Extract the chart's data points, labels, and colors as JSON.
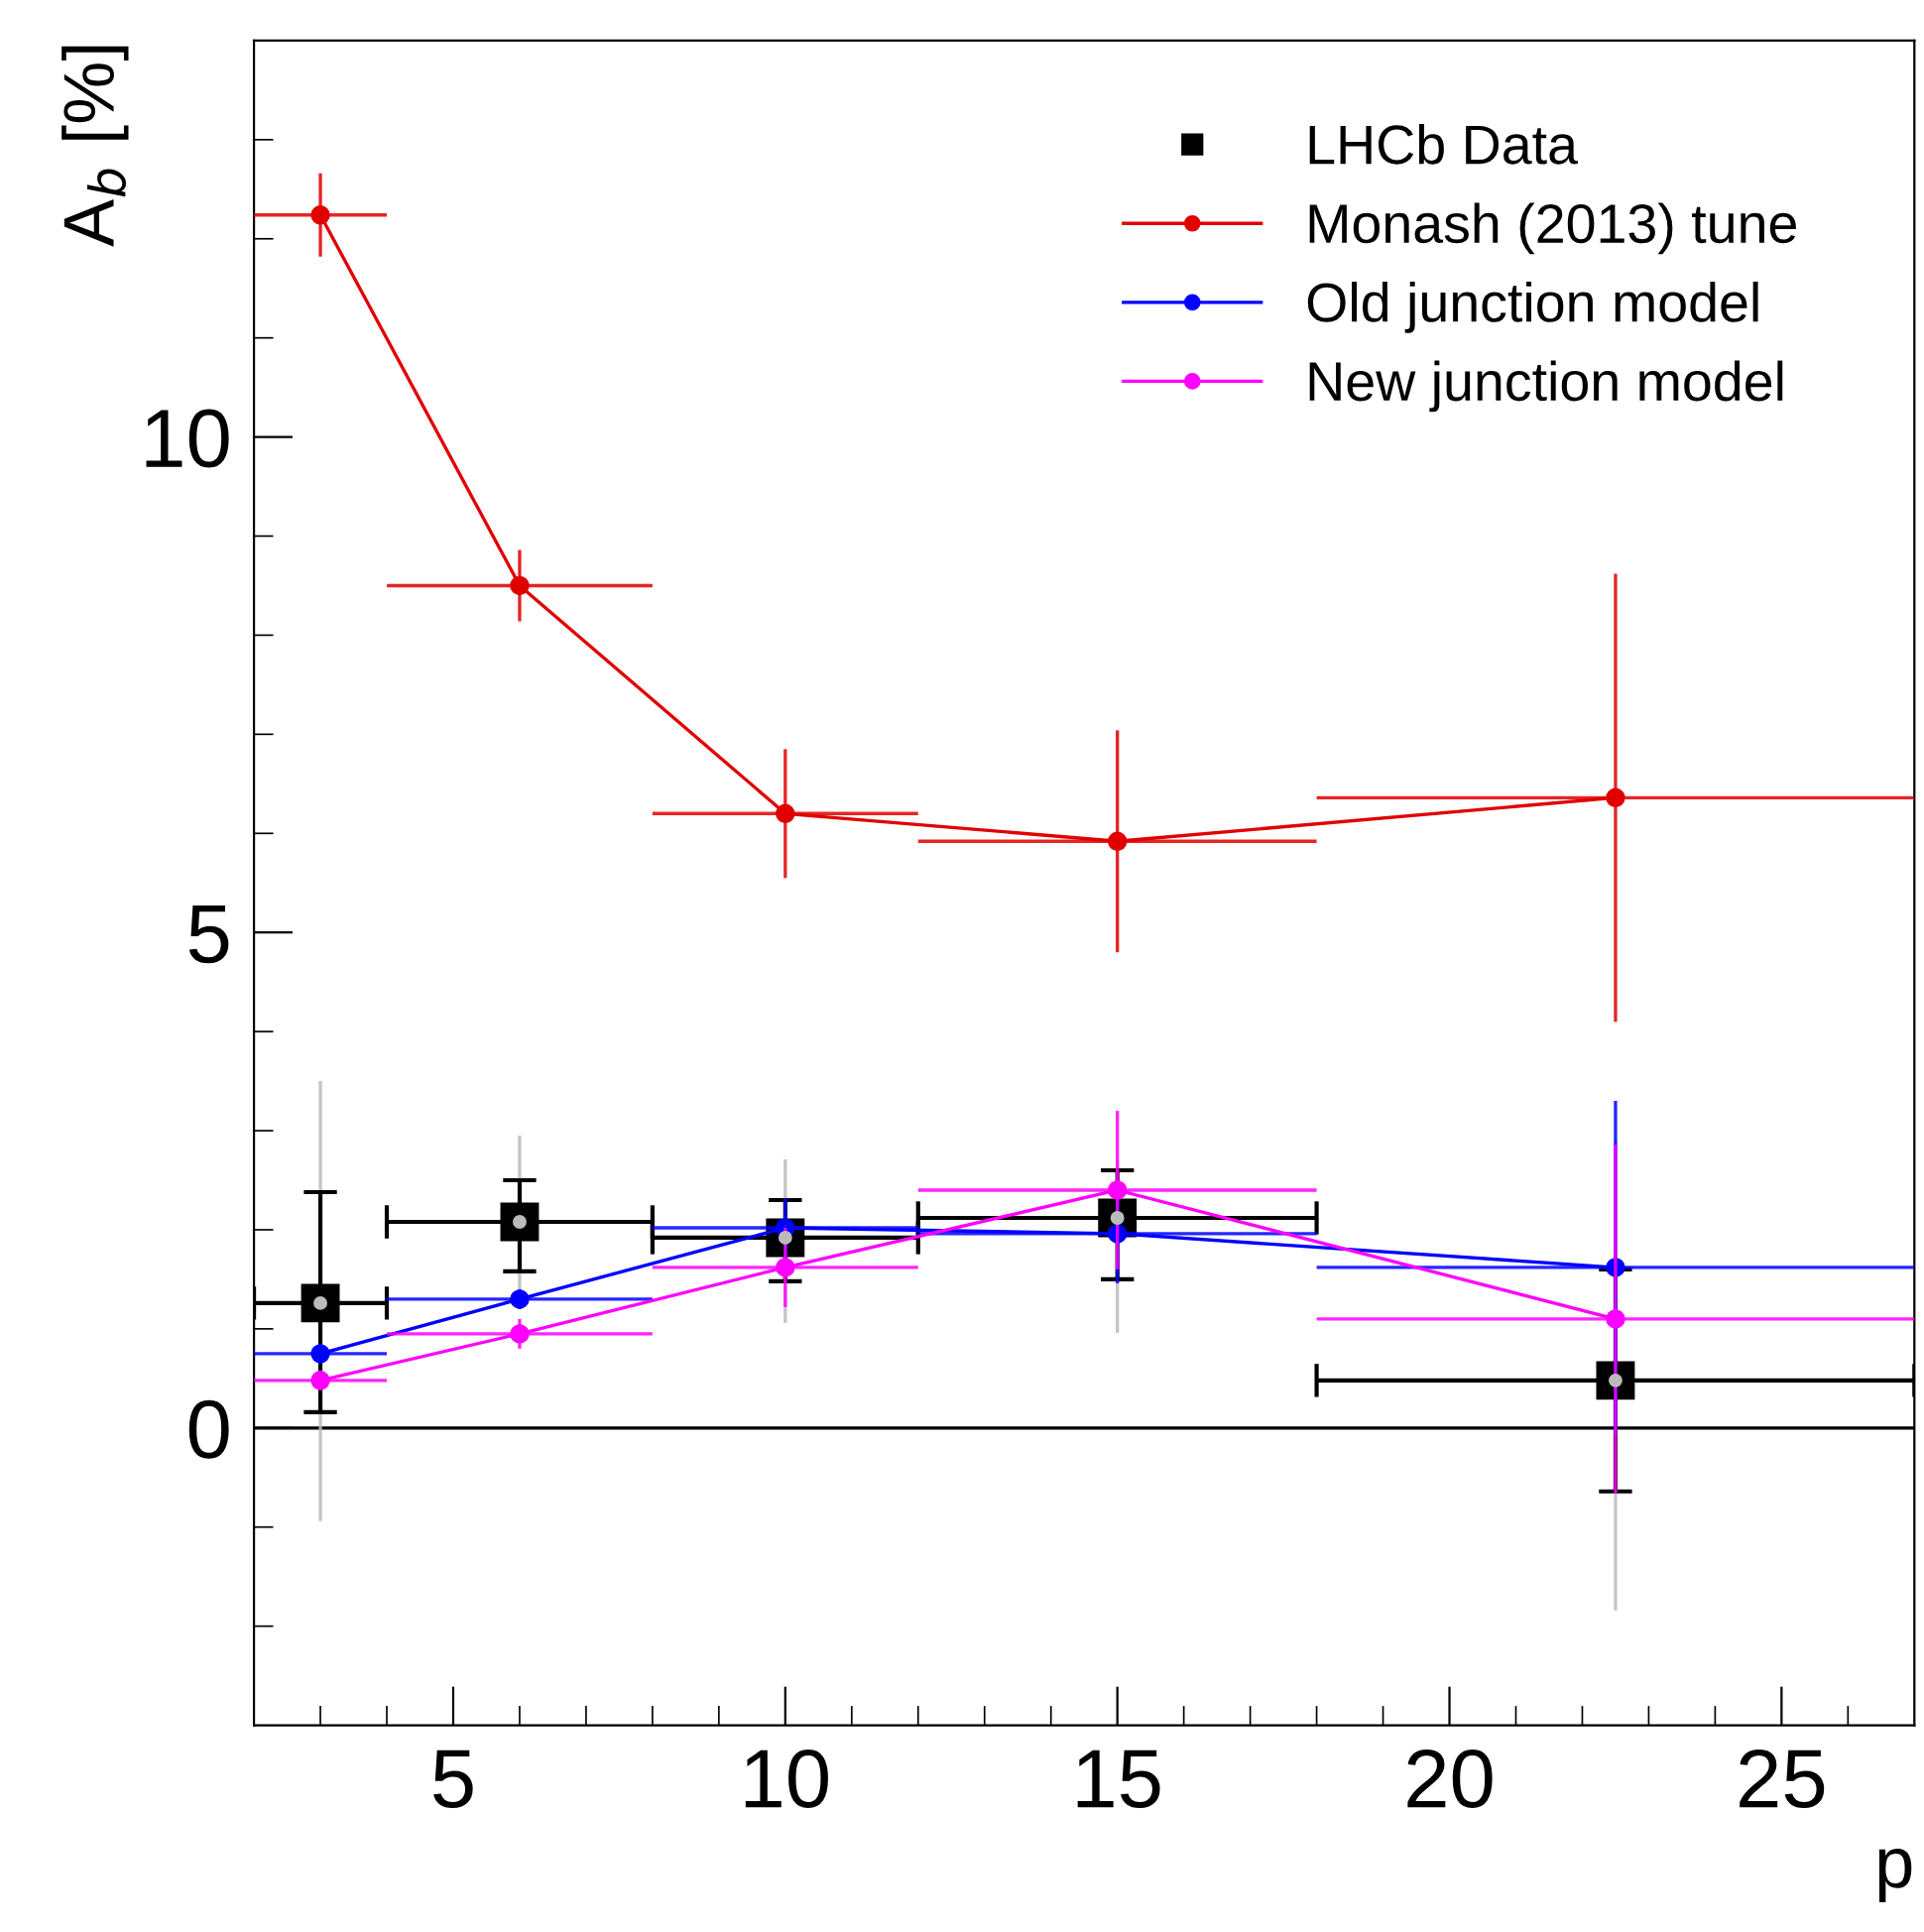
{
  "chart_data": {
    "type": "line",
    "xlabel": "p",
    "ylabel": "A$_{b}$ [%]",
    "xlim": [
      2,
      27
    ],
    "ylim": [
      -3,
      14
    ],
    "xticks": [
      {
        "value": 3,
        "label": null
      },
      {
        "value": 4,
        "label": null
      },
      5,
      {
        "value": 6,
        "label": null
      },
      {
        "value": 7,
        "label": null
      },
      {
        "value": 8,
        "label": null
      },
      {
        "value": 9,
        "label": null
      },
      10,
      {
        "value": 11,
        "label": null
      },
      {
        "value": 12,
        "label": null
      },
      {
        "value": 13,
        "label": null
      },
      {
        "value": 14,
        "label": null
      },
      15,
      {
        "value": 16,
        "label": null
      },
      {
        "value": 17,
        "label": null
      },
      {
        "value": 18,
        "label": null
      },
      {
        "value": 19,
        "label": null
      },
      20,
      {
        "value": 21,
        "label": null
      },
      {
        "value": 22,
        "label": null
      },
      {
        "value": 23,
        "label": null
      },
      {
        "value": 24,
        "label": null
      },
      25,
      {
        "value": 26,
        "label": null
      }
    ],
    "yticks": [
      {
        "value": -2,
        "label": null
      },
      {
        "value": -1,
        "label": null
      },
      0,
      {
        "value": 1,
        "label": null
      },
      {
        "value": 2,
        "label": null
      },
      {
        "value": 3,
        "label": null
      },
      {
        "value": 4,
        "label": null
      },
      5,
      {
        "value": 6,
        "label": null
      },
      {
        "value": 7,
        "label": null
      },
      {
        "value": 8,
        "label": null
      },
      {
        "value": 9,
        "label": null
      },
      10,
      {
        "value": 11,
        "label": null
      },
      {
        "value": 12,
        "label": null
      },
      {
        "value": 13,
        "label": null
      }
    ],
    "grid": false,
    "legend": "top right",
    "ref_lines": [
      {
        "axis": "y",
        "value": 0,
        "color": "#000000"
      }
    ],
    "series": [
      {
        "type": "scatter",
        "color": "#bbbbbb",
        "marker": "circle",
        "x": [
          3,
          6,
          10,
          15,
          22.5
        ],
        "values": [
          1.26,
          2.08,
          1.92,
          2.12,
          0.48
        ],
        "errors": [
          [
            -0.94,
            3.5
          ],
          [
            1.2,
            2.95
          ],
          [
            1.06,
            2.71
          ],
          [
            0.96,
            2.7
          ],
          [
            -1.84,
            2.9
          ]
        ]
      },
      {
        "name": "LHCb Data",
        "type": "scatter",
        "color": "#000000",
        "marker": "square",
        "x": [
          3,
          6,
          10,
          15,
          22.5
        ],
        "values": [
          1.26,
          2.08,
          1.92,
          2.12,
          0.48
        ],
        "errors": [
          [
            0.16,
            2.38
          ],
          [
            1.58,
            2.5
          ],
          [
            1.48,
            2.3
          ],
          [
            1.5,
            2.6
          ],
          [
            -0.64,
            1.6
          ]
        ],
        "xerrors": [
          [
            2,
            4
          ],
          [
            4,
            8
          ],
          [
            8,
            12
          ],
          [
            12,
            18
          ],
          [
            18,
            27
          ]
        ]
      },
      {
        "name": "Monash (2013) tune",
        "color": "#e00000",
        "marker": "circle",
        "x": [
          3,
          6,
          10,
          15,
          22.5
        ],
        "values": [
          12.24,
          8.5,
          6.2,
          5.92,
          6.36
        ],
        "errors": [
          0.42,
          0.36,
          0.65,
          1.12,
          2.26
        ],
        "xerrors": [
          [
            2,
            4
          ],
          [
            4,
            8
          ],
          [
            8,
            12
          ],
          [
            12,
            18
          ],
          [
            18,
            27
          ]
        ]
      },
      {
        "name": "Old junction model",
        "color": "#0000ff",
        "marker": "circle",
        "x": [
          3,
          6,
          10,
          15,
          22.5
        ],
        "values": [
          0.75,
          1.3,
          2.02,
          1.96,
          1.62
        ],
        "errors": [
          0.1,
          0.1,
          0.3,
          0.5,
          1.68
        ],
        "xerrors": [
          [
            2,
            4
          ],
          [
            4,
            8
          ],
          [
            8,
            12
          ],
          [
            12,
            18
          ],
          [
            18,
            27
          ]
        ]
      },
      {
        "name": "New junction model",
        "color": "#ff00ff",
        "marker": "circle",
        "x": [
          3,
          6,
          10,
          15,
          22.5
        ],
        "values": [
          0.48,
          0.95,
          1.62,
          2.4,
          1.1
        ],
        "errors": [
          0.1,
          0.15,
          0.4,
          0.8,
          1.76
        ],
        "xerrors": [
          [
            2,
            4
          ],
          [
            4,
            8
          ],
          [
            8,
            12
          ],
          [
            12,
            18
          ],
          [
            18,
            27
          ]
        ]
      }
    ]
  }
}
